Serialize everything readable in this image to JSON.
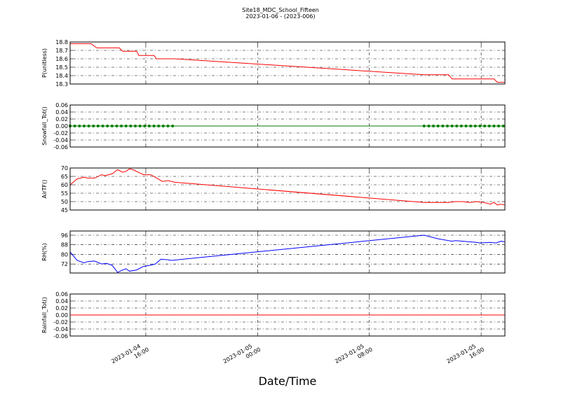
{
  "figure": {
    "title": "Site18_MDC_School_Fifteen",
    "subtitle": "2023-01-06 - (2023-006)",
    "xlabel": "Date/Time",
    "xlim": [
      "2023-01-04 10:35",
      "2023-01-05 17:42"
    ],
    "xticks": [
      "2023-01-04 16:00",
      "2023-01-05 00:00",
      "2023-01-05 08:00",
      "2023-01-05 16:00"
    ]
  },
  "chart_data": [
    {
      "type": "line",
      "ylabel": "P(unitless)",
      "color": "#ff0000",
      "markers": false,
      "grid": true,
      "ylim": [
        18.3,
        18.8
      ],
      "yticks": [
        18.3,
        18.4,
        18.5,
        18.6,
        18.7,
        18.8
      ],
      "x": [
        "2023-01-04 10:35",
        "2023-01-04 12:05",
        "2023-01-04 12:29",
        "2023-01-04 14:06",
        "2023-01-04 14:21",
        "2023-01-04 15:21",
        "2023-01-04 15:30",
        "2023-01-04 16:36",
        "2023-01-04 16:45",
        "2023-01-04 18:06",
        "2023-01-05 11:55",
        "2023-01-05 13:40",
        "2023-01-05 13:55",
        "2023-01-05 16:55",
        "2023-01-05 17:10",
        "2023-01-05 17:40"
      ],
      "values": [
        18.78,
        18.78,
        18.73,
        18.73,
        18.69,
        18.69,
        18.64,
        18.64,
        18.6,
        18.6,
        18.41,
        18.41,
        18.36,
        18.36,
        18.32,
        18.32
      ]
    },
    {
      "type": "line",
      "ylabel": "Snowfall_Tot()",
      "color": "#007f00",
      "markers": true,
      "grid": true,
      "ylim": [
        -0.06,
        0.06
      ],
      "yticks": [
        -0.06,
        -0.04,
        -0.02,
        {
          "value": 0,
          "label": "0.00"
        },
        0.02,
        0.04,
        0.06
      ],
      "x": [
        "2023-01-04 10:35",
        "2023-01-04 10:55",
        "2023-01-04 11:15",
        "2023-01-04 11:35",
        "2023-01-04 11:55",
        "2023-01-04 12:15",
        "2023-01-04 12:35",
        "2023-01-04 12:55",
        "2023-01-04 13:15",
        "2023-01-04 13:35",
        "2023-01-04 13:55",
        "2023-01-04 14:15",
        "2023-01-04 14:35",
        "2023-01-04 14:55",
        "2023-01-04 15:15",
        "2023-01-04 15:35",
        "2023-01-04 15:55",
        "2023-01-04 16:15",
        "2023-01-04 16:35",
        "2023-01-04 16:55",
        "2023-01-04 17:15",
        "2023-01-04 17:35",
        "2023-01-04 17:55",
        "2023-01-05 11:55",
        "2023-01-05 12:15",
        "2023-01-05 12:35",
        "2023-01-05 12:55",
        "2023-01-05 13:15",
        "2023-01-05 13:35",
        "2023-01-05 13:55",
        "2023-01-05 14:15",
        "2023-01-05 14:35",
        "2023-01-05 14:55",
        "2023-01-05 15:15",
        "2023-01-05 15:35",
        "2023-01-05 15:55",
        "2023-01-05 16:15",
        "2023-01-05 16:35",
        "2023-01-05 16:55",
        "2023-01-05 17:15",
        "2023-01-05 17:35"
      ],
      "values": [
        0,
        0,
        0,
        0,
        0,
        0,
        0,
        0,
        0,
        0,
        0,
        0,
        0,
        0,
        0,
        0,
        0,
        0,
        0,
        0,
        0,
        0,
        0,
        0,
        0,
        0,
        0,
        0,
        0,
        0,
        0,
        0,
        0,
        0,
        0,
        0,
        0,
        0,
        0,
        0,
        0
      ]
    },
    {
      "type": "line",
      "ylabel": "AirTF()",
      "color": "#ff0000",
      "markers": false,
      "grid": true,
      "ylim": [
        45,
        70
      ],
      "yticks": [
        45,
        50,
        55,
        60,
        65,
        70
      ],
      "x": [
        "2023-01-04 10:35",
        "2023-01-04 11:05",
        "2023-01-04 11:35",
        "2023-01-04 11:50",
        "2023-01-04 12:20",
        "2023-01-04 12:50",
        "2023-01-04 13:05",
        "2023-01-04 13:35",
        "2023-01-04 13:59",
        "2023-01-04 14:20",
        "2023-01-04 14:35",
        "2023-01-04 14:50",
        "2023-01-04 15:05",
        "2023-01-04 15:35",
        "2023-01-04 15:50",
        "2023-01-04 16:20",
        "2023-01-04 16:41",
        "2023-01-04 17:11",
        "2023-01-04 17:35",
        "2023-01-04 18:05",
        "2023-01-05 11:55",
        "2023-01-05 12:40",
        "2023-01-05 13:40",
        "2023-01-05 14:10",
        "2023-01-05 14:40",
        "2023-01-05 15:10",
        "2023-01-05 15:40",
        "2023-01-05 16:10",
        "2023-01-05 16:40",
        "2023-01-05 16:55",
        "2023-01-05 17:10",
        "2023-01-05 17:25",
        "2023-01-05 17:40"
      ],
      "values": [
        60,
        63.5,
        64.5,
        64,
        64,
        66,
        65.5,
        66.5,
        69,
        67.5,
        68,
        69.5,
        69,
        67,
        66,
        66,
        64.5,
        62,
        62.5,
        61.5,
        49.5,
        49.5,
        49.5,
        50,
        50,
        49.5,
        50,
        49.5,
        48.5,
        49.5,
        48,
        48.5,
        48
      ]
    },
    {
      "type": "line",
      "ylabel": "RH(%)",
      "color": "#0000ff",
      "markers": false,
      "grid": true,
      "ylim": [
        64.5,
        99.5
      ],
      "yticks": [
        72,
        80,
        88,
        96
      ],
      "x": [
        "2023-01-04 10:35",
        "2023-01-04 11:05",
        "2023-01-04 11:35",
        "2023-01-04 11:50",
        "2023-01-04 12:20",
        "2023-01-04 12:50",
        "2023-01-04 13:11",
        "2023-01-04 13:35",
        "2023-01-04 13:59",
        "2023-01-04 14:20",
        "2023-01-04 14:35",
        "2023-01-04 14:50",
        "2023-01-04 15:20",
        "2023-01-04 15:50",
        "2023-01-04 16:20",
        "2023-01-04 16:41",
        "2023-01-04 17:05",
        "2023-01-04 17:35",
        "2023-01-04 17:50",
        "2023-01-05 11:55",
        "2023-01-05 12:55",
        "2023-01-05 13:55",
        "2023-01-05 14:10",
        "2023-01-05 15:40",
        "2023-01-05 15:55",
        "2023-01-05 16:40",
        "2023-01-05 17:04",
        "2023-01-05 17:25",
        "2023-01-05 17:40"
      ],
      "values": [
        82,
        75,
        73,
        74,
        74.5,
        72,
        72.5,
        71,
        65,
        67,
        68,
        66,
        67,
        70,
        71,
        72,
        76,
        75.5,
        75,
        96,
        93,
        91,
        91.5,
        90,
        89.5,
        90,
        89.5,
        91,
        90.5
      ]
    },
    {
      "type": "line",
      "ylabel": "Rainfall_Tot()",
      "color": "#ff0000",
      "markers": false,
      "grid": true,
      "ylim": [
        -0.06,
        0.06
      ],
      "yticks": [
        -0.06,
        -0.04,
        -0.02,
        {
          "value": 0,
          "label": "0.00"
        },
        0.02,
        0.04,
        0.06
      ],
      "x": [
        "2023-01-04 10:35",
        "2023-01-05 17:40"
      ],
      "values": [
        0,
        0
      ]
    }
  ]
}
